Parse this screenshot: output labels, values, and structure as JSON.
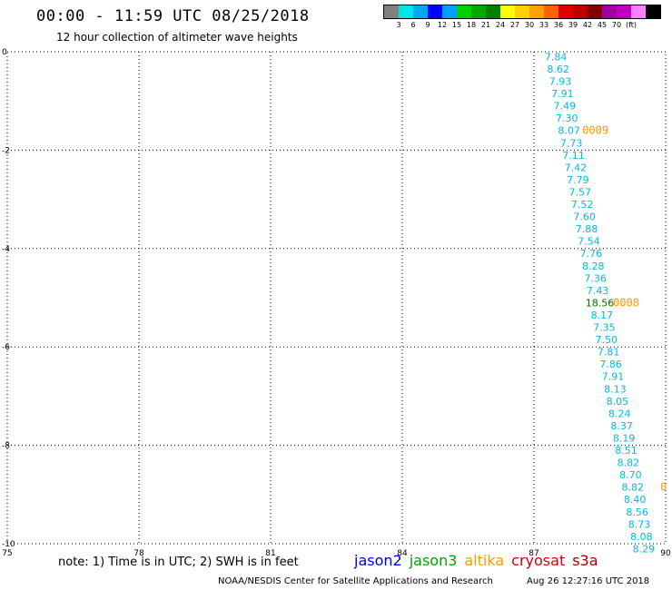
{
  "header": {
    "title": "00:00 - 11:59 UTC 08/25/2018",
    "subtitle": "12 hour collection of altimeter wave heights"
  },
  "scale": {
    "colors": [
      "#808080",
      "#00e5e5",
      "#00a8f0",
      "#0000ff",
      "#00a0ff",
      "#00d000",
      "#00a800",
      "#008000",
      "#ffff00",
      "#ffd000",
      "#ffa000",
      "#ff6000",
      "#e00000",
      "#c00000",
      "#800000",
      "#a000a0",
      "#c000c0",
      "#ff80ff",
      "#000000"
    ],
    "labels": [
      "3",
      "6",
      "9",
      "12",
      "15",
      "18",
      "21",
      "24",
      "27",
      "30",
      "33",
      "36",
      "39",
      "42",
      "45",
      "70",
      "(ft)"
    ]
  },
  "map": {
    "x_ticks": [
      "75",
      "78",
      "81",
      "84",
      "87",
      "90"
    ],
    "y_ticks": [
      "0",
      "-2",
      "-4",
      "-6",
      "-8",
      "-10"
    ],
    "lon_range": [
      75,
      90
    ],
    "lat_range": [
      -10,
      0
    ]
  },
  "track": {
    "color": "#00b8e8",
    "points": [
      {
        "lon": 87.5,
        "lat": -0.1,
        "v": "7.84"
      },
      {
        "lon": 87.55,
        "lat": -0.35,
        "v": "8.62"
      },
      {
        "lon": 87.6,
        "lat": -0.6,
        "v": "7.93"
      },
      {
        "lon": 87.65,
        "lat": -0.85,
        "v": "7.91"
      },
      {
        "lon": 87.7,
        "lat": -1.1,
        "v": "7.49"
      },
      {
        "lon": 87.75,
        "lat": -1.35,
        "v": "7.30"
      },
      {
        "lon": 87.8,
        "lat": -1.6,
        "v": "8.07"
      },
      {
        "lon": 87.85,
        "lat": -1.85,
        "v": "7.73"
      },
      {
        "lon": 87.9,
        "lat": -2.1,
        "v": "7.11"
      },
      {
        "lon": 87.95,
        "lat": -2.35,
        "v": "7.42"
      },
      {
        "lon": 88.0,
        "lat": -2.6,
        "v": "7.79"
      },
      {
        "lon": 88.05,
        "lat": -2.85,
        "v": "7.57"
      },
      {
        "lon": 88.1,
        "lat": -3.1,
        "v": "7.52"
      },
      {
        "lon": 88.15,
        "lat": -3.35,
        "v": "7.60"
      },
      {
        "lon": 88.2,
        "lat": -3.6,
        "v": "7.88"
      },
      {
        "lon": 88.25,
        "lat": -3.85,
        "v": "7.54"
      },
      {
        "lon": 88.3,
        "lat": -4.1,
        "v": "7.76"
      },
      {
        "lon": 88.35,
        "lat": -4.35,
        "v": "8.28"
      },
      {
        "lon": 88.4,
        "lat": -4.6,
        "v": "7.36"
      },
      {
        "lon": 88.45,
        "lat": -4.85,
        "v": "7.43"
      },
      {
        "lon": 88.5,
        "lat": -5.1,
        "v": "18.56",
        "color": "#007000"
      },
      {
        "lon": 88.55,
        "lat": -5.35,
        "v": "8.17"
      },
      {
        "lon": 88.6,
        "lat": -5.6,
        "v": "7.35"
      },
      {
        "lon": 88.65,
        "lat": -5.85,
        "v": "7.50"
      },
      {
        "lon": 88.7,
        "lat": -6.1,
        "v": "7.81"
      },
      {
        "lon": 88.75,
        "lat": -6.35,
        "v": "7.86"
      },
      {
        "lon": 88.8,
        "lat": -6.6,
        "v": "7.91"
      },
      {
        "lon": 88.85,
        "lat": -6.85,
        "v": "8.13"
      },
      {
        "lon": 88.9,
        "lat": -7.1,
        "v": "8.05"
      },
      {
        "lon": 88.95,
        "lat": -7.35,
        "v": "8.24"
      },
      {
        "lon": 89.0,
        "lat": -7.6,
        "v": "8.37"
      },
      {
        "lon": 89.05,
        "lat": -7.85,
        "v": "8.19"
      },
      {
        "lon": 89.1,
        "lat": -8.1,
        "v": "8.51"
      },
      {
        "lon": 89.15,
        "lat": -8.35,
        "v": "8.82"
      },
      {
        "lon": 89.2,
        "lat": -8.6,
        "v": "8.70"
      },
      {
        "lon": 89.25,
        "lat": -8.85,
        "v": "8.82"
      },
      {
        "lon": 89.3,
        "lat": -9.1,
        "v": "8.40"
      },
      {
        "lon": 89.35,
        "lat": -9.35,
        "v": "8.56"
      },
      {
        "lon": 89.4,
        "lat": -9.6,
        "v": "8.73"
      },
      {
        "lon": 89.45,
        "lat": -9.85,
        "v": "8.08"
      },
      {
        "lon": 89.5,
        "lat": -10.1,
        "v": "8.29"
      }
    ]
  },
  "time_tags": {
    "color": "#ff9900",
    "items": [
      {
        "lon": 88.4,
        "lat": -1.6,
        "label": "0009"
      },
      {
        "lon": 89.1,
        "lat": -5.1,
        "label": "0008"
      },
      {
        "lon": 89.95,
        "lat": -8.85,
        "label": "0"
      }
    ]
  },
  "footer": {
    "note": "note: 1) Time is in UTC; 2) SWH is in feet",
    "satellites": [
      {
        "name": "jason2",
        "color": "#0000e0"
      },
      {
        "name": "jason3",
        "color": "#00a000"
      },
      {
        "name": "altika",
        "color": "#ff9900"
      },
      {
        "name": "cryosat",
        "color": "#d00000"
      },
      {
        "name": "s3a",
        "color": "#a00000"
      }
    ],
    "credit": "NOAA/NESDIS Center for Satellite Applications and Research",
    "timestamp": "Aug 26 12:27:16 UTC 2018"
  }
}
